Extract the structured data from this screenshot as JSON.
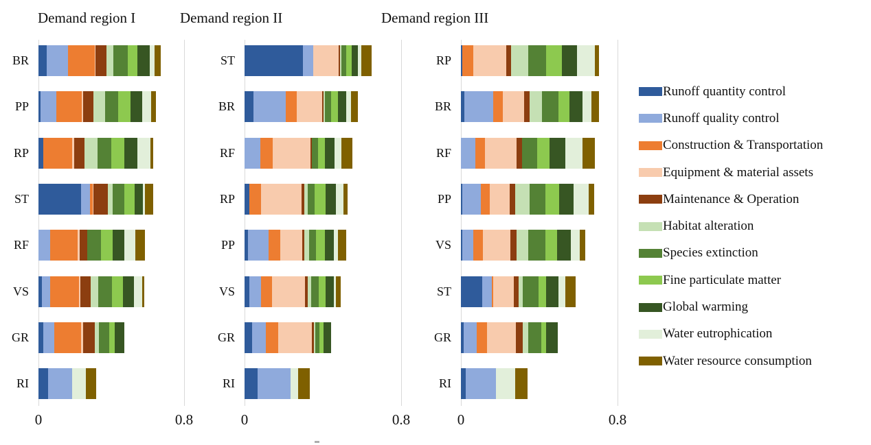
{
  "page": {
    "background": "#ffffff"
  },
  "chart_data": {
    "type": "bar",
    "orientation": "horizontal-stacked",
    "axis_max": 0.8,
    "x_tick_labels": [
      "0",
      "0.8"
    ],
    "grid": "vertical lines at 0 and 0.8 only",
    "gridline_color": "#d9d9d9",
    "legend_position": "right",
    "series_names": [
      "Runoff quantity control",
      "Runoff quality control",
      "Construction & Transportation",
      "Equipment & material assets",
      "Maintenance & Operation",
      "Habitat alteration",
      "Species extinction",
      "Fine particulate matter",
      "Global warming",
      "Water eutrophication",
      "Water resource consumption"
    ],
    "series_colors": [
      "#2F5B9B",
      "#8FAADC",
      "#ED7D31",
      "#F8CBAD",
      "#8C3E10",
      "#C5E0B4",
      "#548235",
      "#8DC94F",
      "#375623",
      "#E2EFDA",
      "#7F6000"
    ],
    "panels": [
      {
        "title": "Demand region I",
        "bars": [
          {
            "label": "BR",
            "values": [
              0.045,
              0.117,
              0.147,
              0.004,
              0.06,
              0.038,
              0.08,
              0.054,
              0.068,
              0.026,
              0.032
            ]
          },
          {
            "label": "PP",
            "values": [
              0.013,
              0.085,
              0.14,
              0.009,
              0.055,
              0.064,
              0.073,
              0.068,
              0.064,
              0.047,
              0.029
            ]
          },
          {
            "label": "RP",
            "values": [
              0.026,
              0.0,
              0.16,
              0.01,
              0.056,
              0.074,
              0.074,
              0.073,
              0.07,
              0.074,
              0.013
            ]
          },
          {
            "label": "ST",
            "values": [
              0.235,
              0.048,
              0.015,
              0.004,
              0.08,
              0.025,
              0.065,
              0.055,
              0.045,
              0.015,
              0.045
            ]
          },
          {
            "label": "RF",
            "values": [
              0.0,
              0.064,
              0.153,
              0.008,
              0.043,
              0.0,
              0.077,
              0.063,
              0.065,
              0.06,
              0.053
            ]
          },
          {
            "label": "VS",
            "values": [
              0.018,
              0.046,
              0.157,
              0.008,
              0.057,
              0.042,
              0.077,
              0.06,
              0.059,
              0.045,
              0.014
            ]
          },
          {
            "label": "GR",
            "values": [
              0.028,
              0.057,
              0.149,
              0.01,
              0.064,
              0.023,
              0.056,
              0.032,
              0.052,
              0.0,
              0.0
            ]
          },
          {
            "label": "RI",
            "values": [
              0.054,
              0.13,
              0.0,
              0.0,
              0.0,
              0.0,
              0.0,
              0.0,
              0.0,
              0.077,
              0.055
            ]
          }
        ]
      },
      {
        "title": "Demand region II",
        "bars": [
          {
            "label": "ST",
            "values": [
              0.298,
              0.054,
              0.0,
              0.129,
              0.008,
              0.007,
              0.023,
              0.028,
              0.033,
              0.018,
              0.053
            ]
          },
          {
            "label": "BR",
            "values": [
              0.046,
              0.165,
              0.055,
              0.129,
              0.009,
              0.008,
              0.032,
              0.033,
              0.041,
              0.026,
              0.037
            ]
          },
          {
            "label": "RF",
            "values": [
              0.0,
              0.082,
              0.061,
              0.193,
              0.008,
              0.0,
              0.033,
              0.035,
              0.047,
              0.035,
              0.056
            ]
          },
          {
            "label": "RP",
            "values": [
              0.026,
              0.0,
              0.059,
              0.208,
              0.012,
              0.018,
              0.034,
              0.056,
              0.053,
              0.041,
              0.021
            ]
          },
          {
            "label": "PP",
            "values": [
              0.017,
              0.106,
              0.058,
              0.114,
              0.012,
              0.023,
              0.035,
              0.047,
              0.045,
              0.02,
              0.043
            ]
          },
          {
            "label": "VS",
            "values": [
              0.023,
              0.06,
              0.059,
              0.166,
              0.015,
              0.018,
              0.037,
              0.035,
              0.045,
              0.009,
              0.023
            ]
          },
          {
            "label": "GR",
            "values": [
              0.037,
              0.073,
              0.062,
              0.172,
              0.012,
              0.005,
              0.021,
              0.021,
              0.04,
              0.0,
              0.0
            ]
          },
          {
            "label": "RI",
            "values": [
              0.067,
              0.167,
              0.0,
              0.0,
              0.0,
              0.0,
              0.0,
              0.0,
              0.0,
              0.04,
              0.059
            ]
          }
        ]
      },
      {
        "title": "Demand region III",
        "bars": [
          {
            "label": "RP",
            "values": [
              0.008,
              0.0,
              0.054,
              0.169,
              0.026,
              0.087,
              0.091,
              0.082,
              0.078,
              0.09,
              0.021
            ]
          },
          {
            "label": "BR",
            "values": [
              0.018,
              0.146,
              0.05,
              0.108,
              0.029,
              0.064,
              0.082,
              0.056,
              0.067,
              0.047,
              0.037
            ]
          },
          {
            "label": "RF",
            "values": [
              0.0,
              0.073,
              0.051,
              0.159,
              0.028,
              0.0,
              0.077,
              0.063,
              0.082,
              0.089,
              0.063
            ]
          },
          {
            "label": "PP",
            "values": [
              0.008,
              0.094,
              0.047,
              0.1,
              0.028,
              0.073,
              0.082,
              0.07,
              0.073,
              0.078,
              0.028
            ]
          },
          {
            "label": "VS",
            "values": [
              0.006,
              0.056,
              0.051,
              0.138,
              0.033,
              0.06,
              0.087,
              0.059,
              0.073,
              0.044,
              0.029
            ]
          },
          {
            "label": "ST",
            "values": [
              0.109,
              0.049,
              0.006,
              0.108,
              0.023,
              0.021,
              0.079,
              0.04,
              0.065,
              0.035,
              0.051
            ]
          },
          {
            "label": "GR",
            "values": [
              0.015,
              0.067,
              0.053,
              0.146,
              0.035,
              0.029,
              0.064,
              0.027,
              0.059,
              0.0,
              0.0
            ]
          },
          {
            "label": "RI",
            "values": [
              0.023,
              0.155,
              0.0,
              0.0,
              0.0,
              0.0,
              0.0,
              0.0,
              0.0,
              0.1,
              0.064
            ]
          }
        ]
      }
    ]
  }
}
